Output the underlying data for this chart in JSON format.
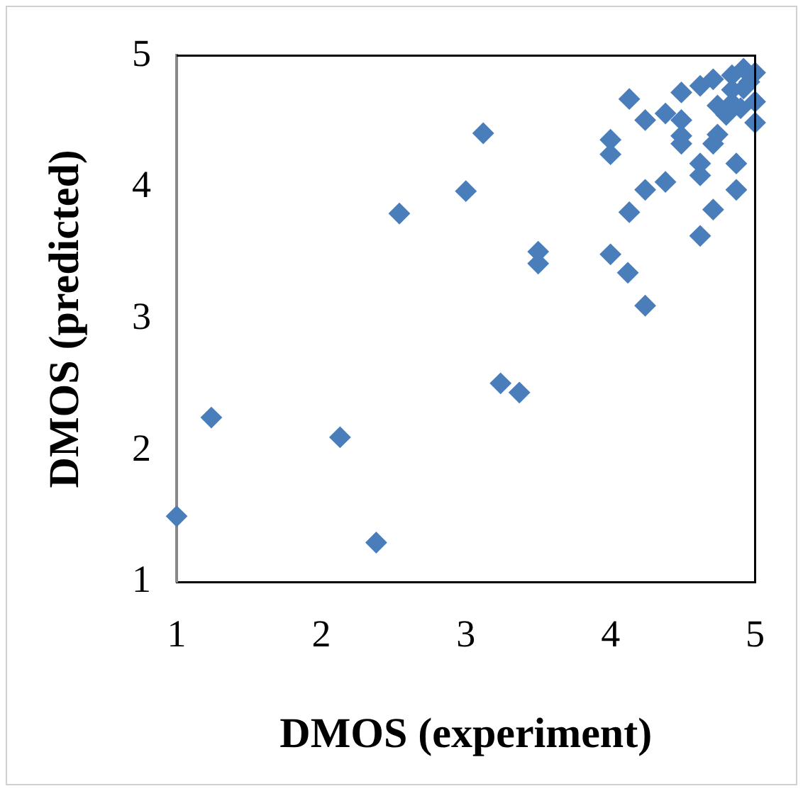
{
  "chart_data": {
    "type": "scatter",
    "xlabel": "DMOS (experiment)",
    "ylabel": "DMOS (predicted)",
    "xlim": [
      1,
      5
    ],
    "ylim": [
      1,
      5
    ],
    "xticks": [
      1,
      2,
      3,
      4,
      5
    ],
    "yticks": [
      1,
      2,
      3,
      4,
      5
    ],
    "grid": false,
    "legend": false,
    "marker": "diamond",
    "series": [
      {
        "color": "#4a7ebb",
        "x": [
          1,
          1.24,
          2.13,
          2.38,
          2.54,
          3,
          3.12,
          3.24,
          3.37,
          3.5,
          3.5,
          4,
          4,
          4,
          4.12,
          4.24,
          4.13,
          4.13,
          4.24,
          4.24,
          4.38,
          4.38,
          4.49,
          4.49,
          4.49,
          4.49,
          4.62,
          4.62,
          4.62,
          4.62,
          4.71,
          4.71,
          4.74,
          4.74,
          4.71,
          4.84,
          4.84,
          4.84,
          4.87,
          4.87,
          4.92,
          4.92,
          5,
          5,
          5,
          4.96,
          4.8,
          4.9
        ],
        "values": [
          1.5,
          2.25,
          2.1,
          1.3,
          3.8,
          3.97,
          4.41,
          2.51,
          2.44,
          3.51,
          3.42,
          3.49,
          4.25,
          4.36,
          3.35,
          3.1,
          3.81,
          4.67,
          3.98,
          4.51,
          4.04,
          4.56,
          4.72,
          4.51,
          4.39,
          4.33,
          4.77,
          4.18,
          4.09,
          3.63,
          3.83,
          4.82,
          4.62,
          4.4,
          4.33,
          4.85,
          4.74,
          4.64,
          4.18,
          3.98,
          4.9,
          4.75,
          4.87,
          4.65,
          4.49,
          4.8,
          4.55,
          4.6
        ]
      }
    ]
  }
}
